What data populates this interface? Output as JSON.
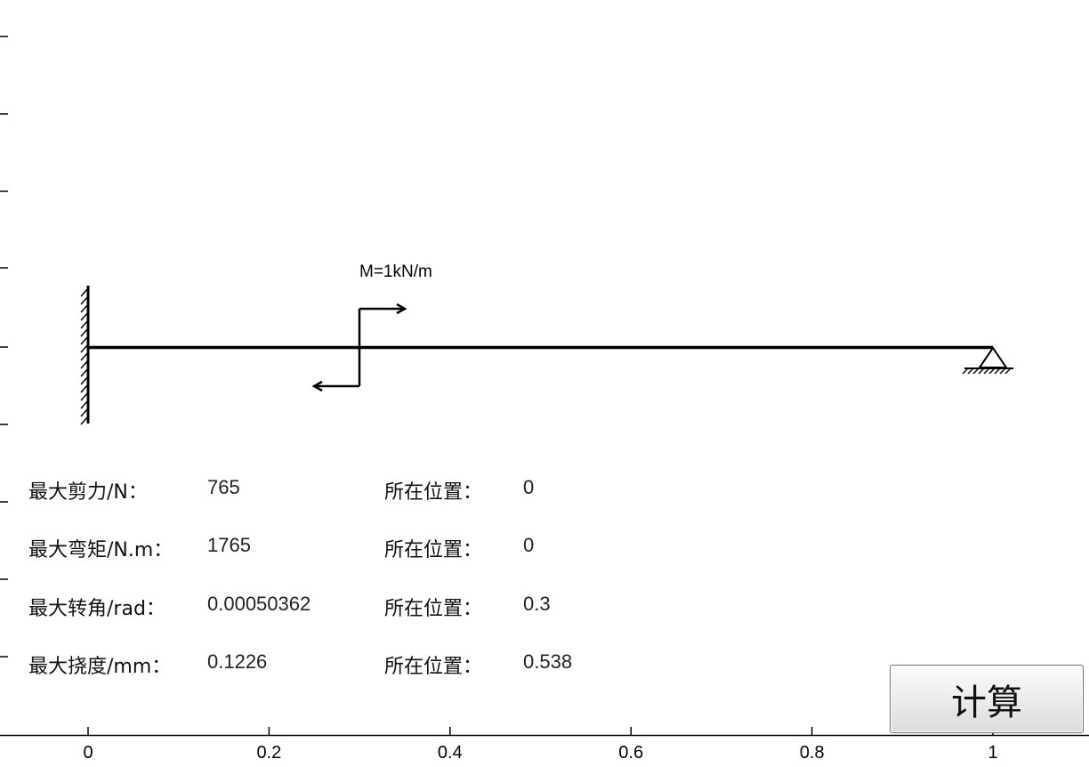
{
  "diagram": {
    "load_label": "M=1kN/m",
    "axis": {
      "x_ticks": [
        0,
        0.2,
        0.4,
        0.6,
        0.8,
        1
      ],
      "x_tick_labels": [
        "0",
        "0.2",
        "0.4",
        "0.6",
        "0.8",
        "1"
      ],
      "x_range": [
        -0.097,
        1.1
      ]
    },
    "beam": {
      "start": 0,
      "end": 1,
      "left_support": "fixed-wall",
      "right_support": "pin",
      "moment_position": 0.3
    }
  },
  "results": [
    {
      "label": "最大剪力/N：",
      "value": "765",
      "pos_label": "所在位置：",
      "pos_value": "0"
    },
    {
      "label": "最大弯矩/N.m：",
      "value": "1765",
      "pos_label": "所在位置：",
      "pos_value": "0"
    },
    {
      "label": "最大转角/rad：",
      "value": "0.00050362",
      "pos_label": "所在位置：",
      "pos_value": "0.3"
    },
    {
      "label": "最大挠度/mm：",
      "value": "0.1226",
      "pos_label": "所在位置：",
      "pos_value": "0.538"
    }
  ],
  "button": {
    "label": "计算"
  }
}
